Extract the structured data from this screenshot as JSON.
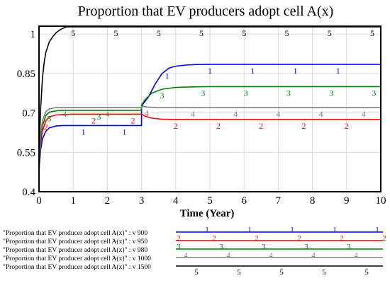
{
  "chart_data": {
    "type": "line",
    "title": "Proportion that EV producers adopt cell A(x)",
    "xlabel": "Time (Year)",
    "ylabel": "",
    "xlim": [
      0,
      10
    ],
    "ylim": [
      0.4,
      1.03
    ],
    "xticks": [
      0,
      1,
      2,
      3,
      4,
      5,
      6,
      7,
      8,
      9,
      10
    ],
    "xtick_labels": [
      "0",
      "1",
      "2",
      "3",
      "4",
      "5",
      "6",
      "7",
      "8",
      "9",
      "10"
    ],
    "yticks": [
      0.4,
      0.55,
      0.7,
      0.85,
      1.0
    ],
    "ytick_labels": [
      "0.4",
      "0.55",
      "0.7",
      "0.85",
      "1"
    ],
    "grid": true,
    "legend_position": "bottom",
    "series": [
      {
        "name": "\"Proportion that EV producer adopt cell A(x)\" : v 900",
        "marker": "1",
        "color": "#0000ff",
        "x": [
          0,
          0.05,
          0.1,
          0.2,
          0.3,
          0.5,
          0.7,
          1.0,
          2.0,
          3.0,
          3.0,
          3.05,
          3.2,
          3.4,
          3.6,
          3.8,
          4.0,
          4.3,
          4.6,
          5,
          6,
          7,
          8,
          9,
          10
        ],
        "y": [
          0.48,
          0.56,
          0.6,
          0.63,
          0.643,
          0.65,
          0.652,
          0.652,
          0.652,
          0.652,
          0.72,
          0.735,
          0.76,
          0.81,
          0.85,
          0.87,
          0.878,
          0.882,
          0.884,
          0.885,
          0.885,
          0.885,
          0.885,
          0.885,
          0.885
        ],
        "marker_x": [
          1.3,
          2.5,
          3.75,
          5.0,
          6.25,
          7.5,
          8.75
        ]
      },
      {
        "name": "\"Proportion that EV producer adopt cell A(x)\" : v 950",
        "marker": "2",
        "color": "#ff0000",
        "x": [
          0,
          0.05,
          0.1,
          0.2,
          0.3,
          0.5,
          0.7,
          1.0,
          2.0,
          3.0,
          3.0,
          3.1,
          3.3,
          3.6,
          4.0,
          5,
          6,
          7,
          8,
          9,
          10
        ],
        "y": [
          0.48,
          0.58,
          0.63,
          0.67,
          0.685,
          0.692,
          0.694,
          0.695,
          0.695,
          0.695,
          0.695,
          0.688,
          0.68,
          0.676,
          0.675,
          0.675,
          0.675,
          0.675,
          0.675,
          0.675,
          0.675
        ],
        "marker_x": [
          0.2,
          1.6,
          2.75,
          4.0,
          5.25,
          6.5,
          7.75,
          9.0
        ]
      },
      {
        "name": "\"Proportion that EV producer adopt cell A(x)\" : v 980",
        "marker": "3",
        "color": "#008000",
        "x": [
          0,
          0.05,
          0.1,
          0.2,
          0.3,
          0.5,
          0.7,
          1.0,
          2.0,
          3.0,
          3.0,
          3.1,
          3.3,
          3.6,
          4.0,
          4.5,
          5,
          6,
          7,
          8,
          9,
          10
        ],
        "y": [
          0.48,
          0.6,
          0.65,
          0.69,
          0.703,
          0.708,
          0.71,
          0.71,
          0.71,
          0.71,
          0.73,
          0.75,
          0.775,
          0.79,
          0.797,
          0.799,
          0.8,
          0.8,
          0.8,
          0.8,
          0.8,
          0.8
        ],
        "marker_x": [
          0.3,
          1.75,
          3.6,
          4.8,
          6.05,
          7.3,
          8.55,
          9.8
        ]
      },
      {
        "name": "\"Proportion that EV producer adopt cell A(x)\" : v 1000",
        "marker": "4",
        "color": "#808080",
        "x": [
          0,
          0.05,
          0.1,
          0.2,
          0.3,
          0.5,
          0.7,
          1.0,
          2.0,
          3.0,
          3.0,
          3.2,
          3.5,
          4.0,
          5,
          6,
          7,
          8,
          9,
          10
        ],
        "y": [
          0.48,
          0.62,
          0.67,
          0.705,
          0.715,
          0.72,
          0.721,
          0.721,
          0.721,
          0.721,
          0.725,
          0.722,
          0.72,
          0.72,
          0.72,
          0.72,
          0.72,
          0.72,
          0.72,
          0.72
        ],
        "marker_x": [
          0.75,
          2.0,
          3.15,
          4.5,
          5.75,
          7.0,
          8.25,
          9.5
        ]
      },
      {
        "name": "\"Proportion that EV producer adopt cell A(x)\" : v 1500",
        "marker": "5",
        "color": "#000000",
        "x": [
          0,
          0.02,
          0.05,
          0.1,
          0.15,
          0.2,
          0.3,
          0.4,
          0.5,
          0.6,
          0.7,
          0.75,
          0.8,
          1.0,
          2,
          3,
          4,
          5,
          6,
          7,
          8,
          9,
          10
        ],
        "y": [
          0.48,
          0.62,
          0.72,
          0.83,
          0.89,
          0.93,
          0.97,
          0.99,
          1.005,
          1.015,
          1.022,
          1.025,
          1.03,
          1.03,
          1.03,
          1.03,
          1.03,
          1.03,
          1.03,
          1.03,
          1.03,
          1.03,
          1.03
        ],
        "marker_x": [
          1.0,
          2.25,
          3.5,
          4.75,
          6.0,
          7.25,
          8.5,
          9.75
        ]
      }
    ]
  }
}
